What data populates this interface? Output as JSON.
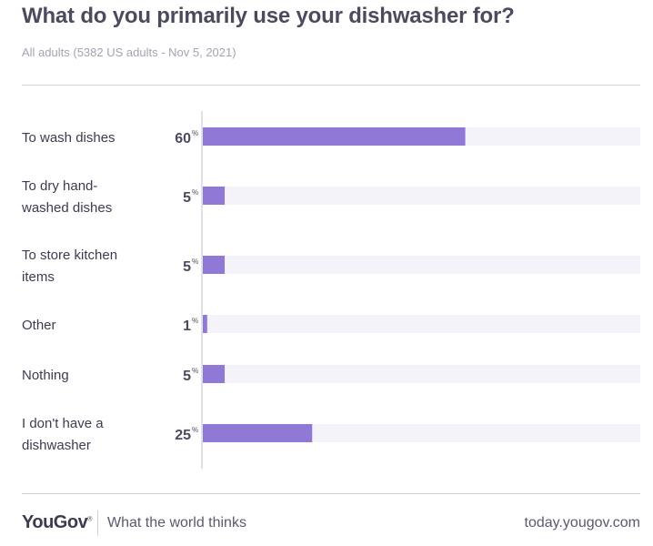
{
  "title": "What do you primarily use your dishwasher for?",
  "subtitle": "All adults (5382 US adults - Nov 5, 2021)",
  "colors": {
    "bar": "#9078d6",
    "track": "#f4f3f9",
    "axis": "#d6d6de",
    "label": "#3c3c50",
    "value": "#4b4b5e"
  },
  "chart_data": {
    "type": "bar",
    "orientation": "horizontal",
    "categories": [
      [
        "To wash dishes"
      ],
      [
        "To dry hand-",
        "washed dishes"
      ],
      [
        "To store kitchen",
        "items"
      ],
      [
        "Other"
      ],
      [
        "Nothing"
      ],
      [
        "I don't have a",
        "dishwasher"
      ]
    ],
    "values": [
      60,
      5,
      5,
      1,
      5,
      25
    ],
    "value_labels": [
      "60",
      "5",
      "5",
      "1",
      "5",
      "25"
    ],
    "unit": "%",
    "xlim": [
      0,
      100
    ],
    "grid": false
  },
  "footer": {
    "logo": "YouGov",
    "tagline": "What the world thinks",
    "url": "today.yougov.com"
  }
}
